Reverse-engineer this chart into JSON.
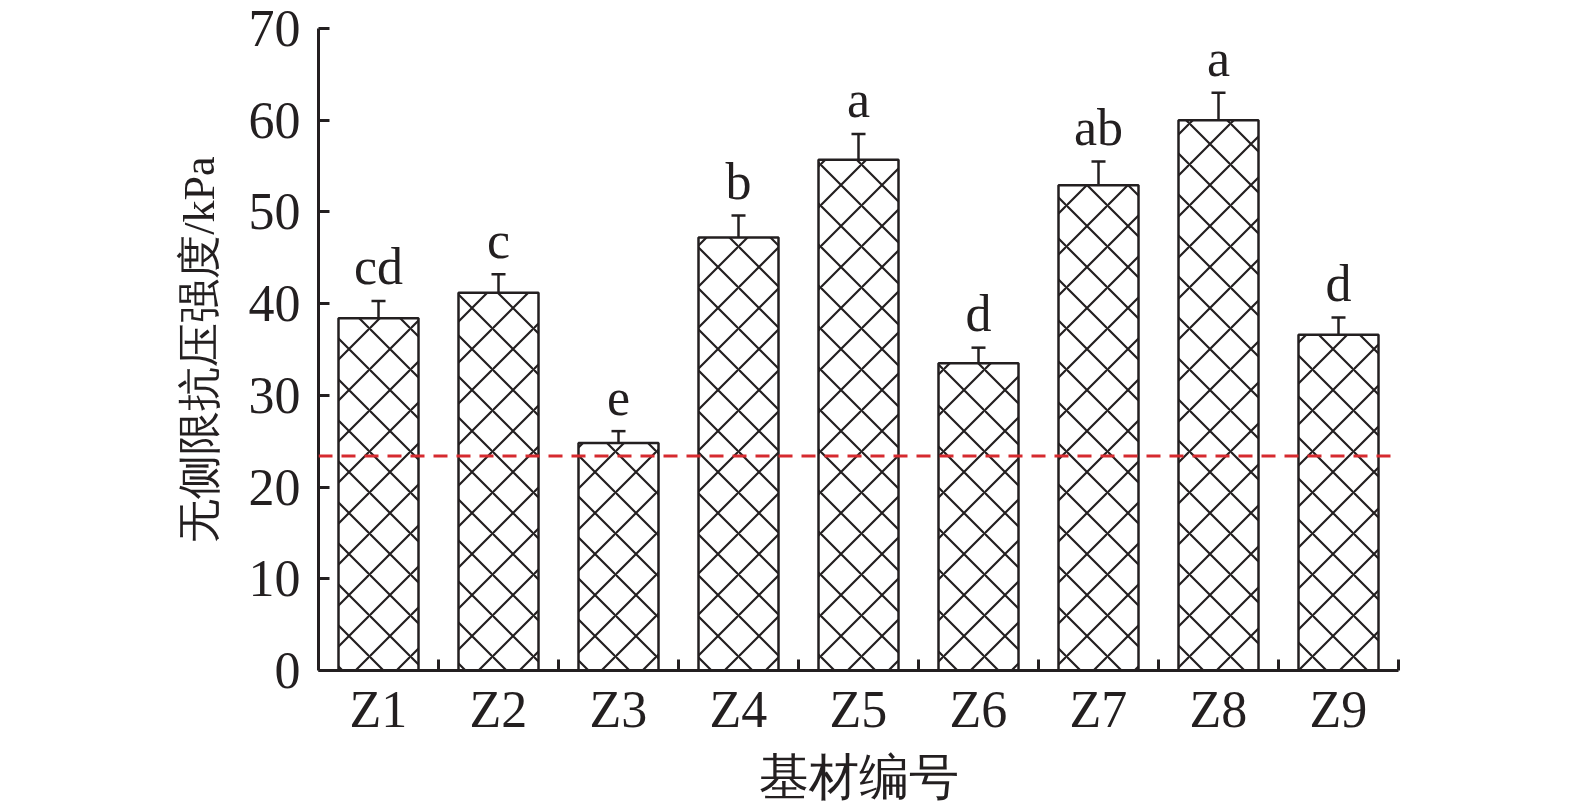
{
  "chart_data": {
    "type": "bar",
    "xlabel": "基材编号",
    "ylabel": "无侧限抗压强度/kPa",
    "categories": [
      "Z1",
      "Z2",
      "Z3",
      "Z4",
      "Z5",
      "Z6",
      "Z7",
      "Z8",
      "Z9"
    ],
    "values": [
      38.4,
      41.2,
      24.8,
      47.2,
      55.7,
      33.5,
      52.9,
      60.0,
      36.6
    ],
    "errors": [
      1.9,
      2.0,
      1.3,
      2.4,
      2.8,
      1.7,
      2.6,
      3.0,
      1.9
    ],
    "color": "#ffffff",
    "ylim": [
      0,
      70
    ],
    "yticks": [
      0,
      10,
      20,
      30,
      40,
      50,
      60,
      70
    ],
    "ref_lines": [
      {
        "axis": "y",
        "value": 23.4,
        "color": "#d62a2f",
        "line_style": "dashed"
      }
    ],
    "annotations": [
      {
        "text": "cd",
        "x": "Z1",
        "y": 40.3
      },
      {
        "text": "c",
        "x": "Z2",
        "y": 43.2
      },
      {
        "text": "e",
        "x": "Z3",
        "y": 26.1
      },
      {
        "text": "b",
        "x": "Z4",
        "y": 49.6
      },
      {
        "text": "a",
        "x": "Z5",
        "y": 58.5
      },
      {
        "text": "d",
        "x": "Z6",
        "y": 35.2
      },
      {
        "text": "ab",
        "x": "Z7",
        "y": 55.5
      },
      {
        "text": "a",
        "x": "Z8",
        "y": 63.0
      },
      {
        "text": "d",
        "x": "Z9",
        "y": 38.5
      }
    ]
  }
}
